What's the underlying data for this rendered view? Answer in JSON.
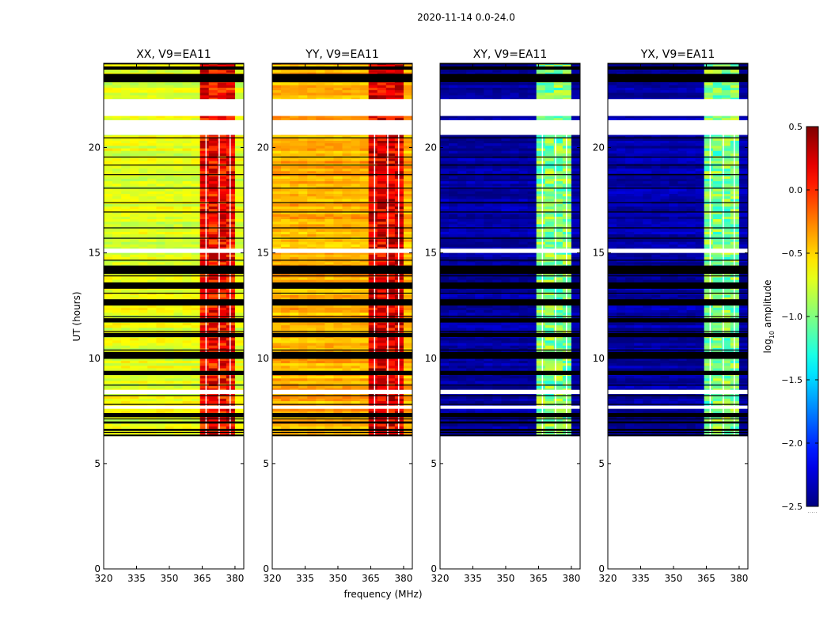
{
  "suptitle": "2020-11-14 0.0-24.0",
  "chart_data": {
    "type": "heatmap",
    "x_label": "frequency (MHz)",
    "y_label": "UT (hours)",
    "xlim": [
      320,
      384
    ],
    "ylim": [
      0,
      24
    ],
    "x_ticks": [
      320,
      335,
      350,
      365,
      380
    ],
    "y_ticks": [
      0,
      5,
      10,
      15,
      20
    ],
    "data_time_range_hours": [
      6.3,
      24.0
    ],
    "rfi_frequency_band_mhz": [
      363,
      381
    ],
    "panels": [
      {
        "title": "XX, V9=EA11",
        "polarization": "XX",
        "base_log_amplitude": -0.7,
        "rfi_log_amplitude": 0.1
      },
      {
        "title": "YY, V9=EA11",
        "polarization": "YY",
        "base_log_amplitude": -0.4,
        "rfi_log_amplitude": 0.2
      },
      {
        "title": "XY, V9=EA11",
        "polarization": "XY",
        "base_log_amplitude": -2.4,
        "rfi_log_amplitude": -1.0
      },
      {
        "title": "YX, V9=EA11",
        "polarization": "YX",
        "base_log_amplitude": -2.4,
        "rfi_log_amplitude": -1.0
      }
    ],
    "colorbar": {
      "label_prefix": "log",
      "label_sub": "10",
      "label_suffix": " amplitude",
      "colormap": "jet",
      "range": [
        -2.5,
        0.5
      ],
      "ticks": [
        "0.5",
        "0.0",
        "−0.5",
        "−1.0",
        "−1.5",
        "−2.0",
        "−2.5"
      ],
      "tick_values": [
        0.5,
        0.0,
        -0.5,
        -1.0,
        -1.5,
        -2.0,
        -2.5
      ],
      "note": "....."
    }
  }
}
